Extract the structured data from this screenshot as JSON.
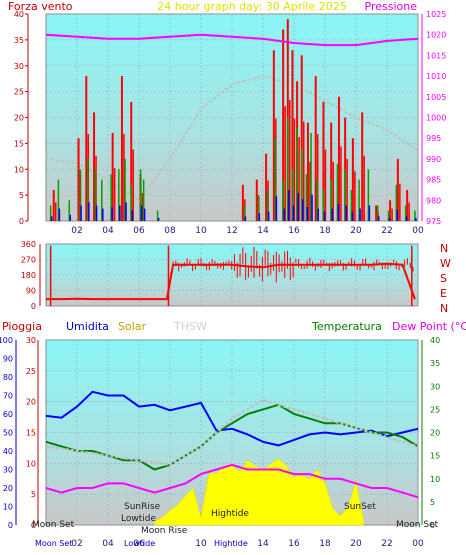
{
  "header": {
    "left": "Forza vento",
    "center": "24 hour graph day: 30 Aprile 2025",
    "right": "Pressione"
  },
  "mid_panel": {
    "directions": [
      "N",
      "W",
      "S",
      "E",
      "N"
    ],
    "y_ticks": [
      "360",
      "270",
      "180",
      "90",
      "0"
    ]
  },
  "bottom_header": {
    "pioggia": "Pioggia",
    "umidita": "Umidita",
    "solar": "Solar",
    "thsw": "THSW",
    "temperatura": "Temperatura",
    "dewpoint": "Dew Point (°C)"
  },
  "x_ticks": [
    "02",
    "04",
    "06",
    "08",
    "10",
    "12",
    "14",
    "16",
    "18",
    "20",
    "22",
    "00"
  ],
  "annotations": {
    "moon_set_left": "Moon Set",
    "moon_set_right": "Moon Set",
    "sunrise": "SunRise",
    "lowtide": "Lowtide",
    "moonrise": "Moon Rise",
    "hightide": "Hightide",
    "sunset": "SunSet",
    "moon_set_axis": "Moon Set",
    "lowtide_axis": "Lowtide",
    "hightide_axis": "Hightide"
  },
  "colors": {
    "plot_bg_top": "#80f0f0",
    "plot_bg_bottom": "#c8c8c8",
    "wind": "#ff0000",
    "gust_green": "#00a000",
    "wind_blue": "#0000ff",
    "pressure": "#ff00ff",
    "grey_line": "#c0c0c0",
    "humidity": "#0000ff",
    "temperature": "#008000",
    "dewpoint": "#ff00ff",
    "solar": "#ffff00",
    "axis_red": "#c00000",
    "axis_blue": "#0000c0",
    "axis_green": "#008000",
    "title_yellow": "#e0e000"
  },
  "chart_data": [
    {
      "type": "line",
      "title": "24 hour graph day: 30 Aprile 2025",
      "x_ticks": [
        "02",
        "04",
        "06",
        "08",
        "10",
        "12",
        "14",
        "16",
        "18",
        "20",
        "22",
        "00"
      ],
      "y_left_label": "Forza vento",
      "y_left_ticks": [
        0,
        5,
        10,
        15,
        20,
        25,
        30,
        35,
        40
      ],
      "y_left_range": [
        0,
        40
      ],
      "y_right_label": "Pressione",
      "y_right_ticks": [
        975,
        980,
        985,
        990,
        995,
        1000,
        1005,
        1010,
        1015,
        1020,
        1025
      ],
      "y_right_range": [
        975,
        1025
      ],
      "pressure_series": {
        "hours": [
          0,
          2,
          4,
          6,
          8,
          10,
          12,
          14,
          16,
          18,
          20,
          22,
          24
        ],
        "values": [
          1020,
          1019.5,
          1019,
          1019,
          1019.5,
          1020,
          1019.5,
          1019,
          1018,
          1017.5,
          1017.5,
          1018.5,
          1019
        ]
      },
      "wind_bursts": {
        "hours": [
          0.3,
          0.8,
          1.5,
          2.2,
          2.7,
          3.2,
          3.6,
          4.2,
          4.7,
          5.1,
          5.5,
          6.1,
          6.3,
          7.2,
          12.8,
          13.7,
          14.3,
          14.8,
          15.3,
          15.6,
          15.9,
          16.2,
          16.5,
          16.8,
          17.1,
          17.5,
          17.9,
          18.4,
          18.8,
          19.3,
          19.7,
          20.2,
          20.8,
          21.4,
          22.1,
          22.6,
          23.2,
          23.8
        ],
        "values": [
          3,
          8,
          4,
          10,
          12,
          10,
          8,
          9,
          10,
          12,
          7,
          10,
          8,
          2,
          3,
          5,
          6,
          16,
          8,
          20,
          10,
          18,
          14,
          9,
          17,
          8,
          6,
          8,
          11,
          10,
          6,
          8,
          10,
          3,
          2,
          7,
          3,
          2
        ]
      },
      "wind_gust_peaks": {
        "hours": [
          0.5,
          2.1,
          2.6,
          3.1,
          4.3,
          4.9,
          5.5,
          6.1,
          12.7,
          13.6,
          14.2,
          14.7,
          15.3,
          15.6,
          15.9,
          16.2,
          16.5,
          16.9,
          17.4,
          17.9,
          18.4,
          18.9,
          19.3,
          19.8,
          20.4,
          21.3,
          22.2,
          22.7,
          23.3
        ],
        "values": [
          6,
          16,
          28,
          21,
          17,
          28,
          23,
          9,
          7,
          8,
          13,
          33,
          37,
          39,
          33,
          27,
          32,
          19,
          28,
          23,
          19,
          24,
          20,
          16,
          21,
          3,
          4,
          12,
          6
        ]
      },
      "grey_trend": {
        "hours": [
          0,
          2,
          4,
          6,
          8,
          10,
          12,
          14,
          16,
          18,
          20,
          22,
          24
        ],
        "values": [
          990,
          989,
          985,
          980,
          990,
          1002,
          1008,
          1010,
          1008,
          1004,
          1000,
          997,
          992
        ]
      }
    },
    {
      "type": "scatter",
      "title": "",
      "y_ticks": [
        0,
        90,
        180,
        270,
        360
      ],
      "y_range": [
        0,
        360
      ],
      "directions": [
        "N",
        "W",
        "S",
        "E",
        "N"
      ],
      "direction_series": {
        "hours": [
          0,
          1,
          2,
          3,
          4,
          5,
          6,
          7,
          7.8,
          8.2,
          9,
          10,
          11,
          12,
          13,
          14,
          15,
          16,
          17,
          18,
          19,
          20,
          21,
          22,
          23,
          23.8
        ],
        "values": [
          40,
          40,
          42,
          40,
          40,
          40,
          40,
          40,
          40,
          240,
          240,
          240,
          240,
          240,
          230,
          225,
          240,
          240,
          240,
          240,
          240,
          240,
          240,
          245,
          240,
          40
        ]
      }
    },
    {
      "type": "line",
      "title": "",
      "x_ticks": [
        "02",
        "04",
        "06",
        "08",
        "10",
        "12",
        "14",
        "16",
        "18",
        "20",
        "22",
        "00"
      ],
      "y_left_outer_label": "Umidita",
      "y_left_outer_ticks": [
        0,
        10,
        20,
        30,
        40,
        50,
        60,
        70,
        80,
        90,
        100
      ],
      "y_left_outer_range": [
        0,
        100
      ],
      "y_left_inner_label": "Pioggia",
      "y_left_inner_ticks": [
        0,
        5,
        10,
        15,
        20,
        25,
        30
      ],
      "y_left_inner_range": [
        0,
        30
      ],
      "y_right_label": "Temperatura",
      "y_right_ticks": [
        0,
        5,
        10,
        15,
        20,
        25,
        30,
        35,
        40
      ],
      "y_right_range": [
        0,
        40
      ],
      "series": [
        {
          "name": "Umidita",
          "hours": [
            0,
            1,
            2,
            3,
            4,
            5,
            6,
            7,
            8,
            9,
            10,
            11,
            12,
            13,
            14,
            15,
            16,
            17,
            18,
            19,
            20,
            21,
            22,
            23,
            24
          ],
          "values": [
            59,
            58,
            64,
            72,
            70,
            70,
            64,
            65,
            62,
            64,
            66,
            51,
            52,
            49,
            45,
            43,
            46,
            49,
            50,
            49,
            50,
            51,
            48,
            50,
            52
          ]
        },
        {
          "name": "Temperatura",
          "hours": [
            0,
            1,
            2,
            3,
            4,
            5,
            6,
            7,
            8,
            9,
            10,
            11,
            12,
            13,
            14,
            15,
            16,
            17,
            18,
            19,
            20,
            21,
            22,
            23,
            24
          ],
          "values": [
            18,
            17,
            16,
            16,
            15,
            14,
            14,
            12,
            13,
            15,
            17,
            20,
            22,
            24,
            25,
            26,
            24,
            23,
            22,
            22,
            21,
            20,
            20,
            19,
            17
          ]
        },
        {
          "name": "Dew Point (°C)",
          "hours": [
            0,
            1,
            2,
            3,
            4,
            5,
            6,
            7,
            8,
            9,
            10,
            11,
            12,
            13,
            14,
            15,
            16,
            17,
            18,
            19,
            20,
            21,
            22,
            23,
            24
          ],
          "values": [
            8,
            7,
            8,
            8,
            9,
            9,
            8,
            7,
            8,
            9,
            11,
            12,
            13,
            12,
            12,
            12,
            11,
            11,
            10,
            10,
            9,
            8,
            8,
            7,
            6
          ]
        },
        {
          "name": "THSW",
          "hours": [
            0,
            2,
            4,
            6,
            8,
            10,
            12,
            14,
            16,
            18,
            20,
            22,
            24
          ],
          "values": [
            17,
            16,
            15,
            14,
            13,
            17,
            23,
            27,
            25,
            23,
            21,
            19,
            17
          ]
        }
      ],
      "solar_series": {
        "hours": [
          7,
          7.5,
          8,
          8.5,
          9,
          9.5,
          10,
          10.5,
          11,
          11.5,
          12,
          12.5,
          13,
          13.5,
          14,
          14.5,
          15,
          15.5,
          16,
          16.5,
          17,
          17.5,
          18,
          18.5,
          19,
          19.5,
          20,
          20.5
        ],
        "values": [
          2,
          4,
          8,
          11,
          16,
          20,
          4,
          28,
          28,
          32,
          32,
          29,
          35,
          32,
          30,
          33,
          36,
          32,
          26,
          27,
          25,
          30,
          23,
          9,
          5,
          10,
          24,
          2
        ]
      }
    }
  ]
}
